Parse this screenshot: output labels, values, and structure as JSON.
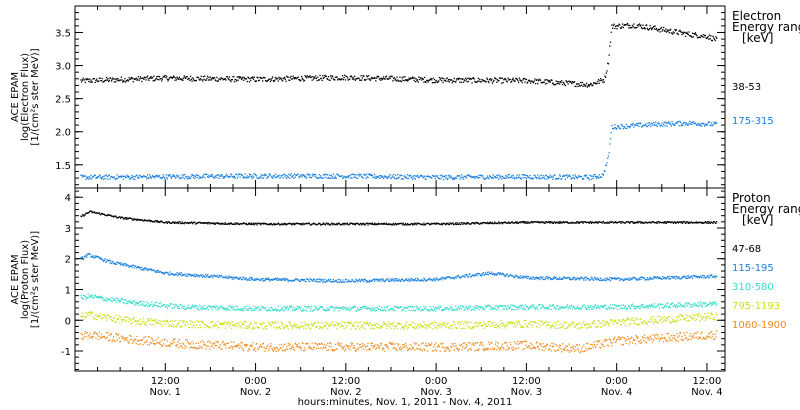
{
  "chart_data": [
    {
      "type": "scatter",
      "panel": "electron",
      "ylabel": [
        "ACE EPAM",
        "log(Electron Flux)",
        "[1/(cm²s ster MeV)]"
      ],
      "ylim": [
        1.15,
        3.9
      ],
      "yticks": [
        "1.5",
        "2.0",
        "2.5",
        "3.0",
        "3.5"
      ],
      "ytick_values": [
        1.5,
        2.0,
        2.5,
        3.0,
        3.5
      ],
      "legend_title": [
        "Electron",
        "Energy ranges",
        "[keV]"
      ],
      "series": [
        {
          "name": "38-53",
          "color": "#000000",
          "points": [
            [
              0.05,
              2.78
            ],
            [
              0.5,
              2.82
            ],
            [
              1.0,
              2.8
            ],
            [
              1.5,
              2.83
            ],
            [
              2.0,
              2.79
            ],
            [
              2.5,
              2.78
            ],
            [
              2.85,
              2.72
            ],
            [
              2.93,
              2.8
            ],
            [
              2.95,
              3.05
            ],
            [
              2.97,
              3.6
            ],
            [
              3.1,
              3.62
            ],
            [
              3.25,
              3.55
            ],
            [
              3.4,
              3.48
            ],
            [
              3.5,
              3.45
            ],
            [
              3.55,
              3.4
            ]
          ],
          "noise": 0.04
        },
        {
          "name": "175-315",
          "color": "#1a80e0",
          "points": [
            [
              0.05,
              1.32
            ],
            [
              0.5,
              1.33
            ],
            [
              1.0,
              1.34
            ],
            [
              1.5,
              1.34
            ],
            [
              2.0,
              1.32
            ],
            [
              2.5,
              1.33
            ],
            [
              2.85,
              1.32
            ],
            [
              2.92,
              1.35
            ],
            [
              2.95,
              1.6
            ],
            [
              2.97,
              2.08
            ],
            [
              3.2,
              2.12
            ],
            [
              3.4,
              2.14
            ],
            [
              3.55,
              2.12
            ]
          ],
          "noise": 0.035
        }
      ]
    },
    {
      "type": "scatter",
      "panel": "proton",
      "ylabel": [
        "ACE EPAM",
        "log(Proton Flux)",
        "[1/(cm²s ster MeV)]"
      ],
      "ylim": [
        -1.65,
        4.3
      ],
      "yticks": [
        "-1",
        "0",
        "1",
        "2",
        "3",
        "4"
      ],
      "ytick_values": [
        -1,
        0,
        1,
        2,
        3,
        4
      ],
      "legend_title": [
        "Proton",
        "Energy ranges",
        "[keV]"
      ],
      "series": [
        {
          "name": "47-68",
          "color": "#000000",
          "points": [
            [
              0.0,
              3.3
            ],
            [
              0.08,
              3.55
            ],
            [
              0.25,
              3.35
            ],
            [
              0.5,
              3.2
            ],
            [
              1.0,
              3.15
            ],
            [
              1.5,
              3.15
            ],
            [
              2.0,
              3.15
            ],
            [
              2.3,
              3.18
            ],
            [
              2.5,
              3.2
            ],
            [
              3.0,
              3.2
            ],
            [
              3.55,
              3.2
            ]
          ],
          "noise": 0.03
        },
        {
          "name": "115-195",
          "color": "#1a80e0",
          "points": [
            [
              0.0,
              1.9
            ],
            [
              0.07,
              2.15
            ],
            [
              0.2,
              1.9
            ],
            [
              0.5,
              1.55
            ],
            [
              1.0,
              1.35
            ],
            [
              1.5,
              1.3
            ],
            [
              2.0,
              1.35
            ],
            [
              2.3,
              1.55
            ],
            [
              2.5,
              1.4
            ],
            [
              3.0,
              1.35
            ],
            [
              3.55,
              1.45
            ]
          ],
          "noise": 0.05
        },
        {
          "name": "310-580",
          "color": "#33dccc",
          "points": [
            [
              0.0,
              0.7
            ],
            [
              0.07,
              0.8
            ],
            [
              0.3,
              0.6
            ],
            [
              0.6,
              0.45
            ],
            [
              1.0,
              0.4
            ],
            [
              1.5,
              0.4
            ],
            [
              2.0,
              0.4
            ],
            [
              2.5,
              0.45
            ],
            [
              3.0,
              0.45
            ],
            [
              3.55,
              0.55
            ]
          ],
          "noise": 0.08
        },
        {
          "name": "795-1193",
          "color": "#c8e020",
          "points": [
            [
              0.0,
              0.05
            ],
            [
              0.07,
              0.2
            ],
            [
              0.3,
              0.0
            ],
            [
              0.6,
              -0.1
            ],
            [
              1.0,
              -0.15
            ],
            [
              1.5,
              -0.15
            ],
            [
              2.0,
              -0.15
            ],
            [
              2.5,
              -0.1
            ],
            [
              2.8,
              -0.15
            ],
            [
              3.0,
              -0.05
            ],
            [
              3.55,
              0.15
            ]
          ],
          "noise": 0.12
        },
        {
          "name": "1060-1900",
          "color": "#f08c20",
          "points": [
            [
              0.0,
              -0.55
            ],
            [
              0.07,
              -0.45
            ],
            [
              0.3,
              -0.6
            ],
            [
              0.6,
              -0.75
            ],
            [
              1.0,
              -0.85
            ],
            [
              1.5,
              -0.85
            ],
            [
              2.0,
              -0.85
            ],
            [
              2.5,
              -0.8
            ],
            [
              2.8,
              -0.9
            ],
            [
              3.0,
              -0.65
            ],
            [
              3.55,
              -0.45
            ]
          ],
          "noise": 0.14
        }
      ]
    }
  ],
  "x_axis": {
    "tick_labels": [
      {
        "time": "12:00",
        "day": "Nov. 1"
      },
      {
        "time": "0:00",
        "day": "Nov. 2"
      },
      {
        "time": "12:00",
        "day": "Nov. 2"
      },
      {
        "time": "0:00",
        "day": "Nov. 3"
      },
      {
        "time": "12:00",
        "day": "Nov. 3"
      },
      {
        "time": "0:00",
        "day": "Nov. 4"
      },
      {
        "time": "12:00",
        "day": "Nov. 4"
      }
    ],
    "tick_values_days": [
      0.5,
      1.0,
      1.5,
      2.0,
      2.5,
      3.0,
      3.5
    ],
    "range_days": [
      0.0,
      3.6
    ],
    "data_end_days": 3.55,
    "xlabel": "hours:minutes, Nov. 1, 2011 - Nov. 4, 2011"
  }
}
